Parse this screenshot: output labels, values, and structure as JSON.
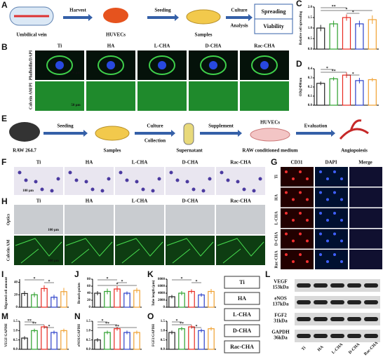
{
  "panel_labels": [
    "A",
    "B",
    "C",
    "D",
    "E",
    "F",
    "G",
    "H",
    "I",
    "J",
    "K",
    "L",
    "M",
    "N",
    "O"
  ],
  "legend": {
    "names": [
      "Ti",
      "HA",
      "L-CHA",
      "D-CHA",
      "Rac-CHA"
    ],
    "colors": [
      "#222222",
      "#2ca02c",
      "#e8281e",
      "#2a3fc9",
      "#f0a030"
    ]
  },
  "workflow_a": {
    "nodes": [
      "Umbilical vein",
      "HUVECs",
      "Samples"
    ],
    "arrows": [
      "Harvest",
      "Seeding",
      "Culture",
      "Analysis"
    ],
    "outputs": [
      "Spreading",
      "Viability"
    ]
  },
  "workflow_e": {
    "nodes": [
      "RAW 264.7",
      "Samples",
      "Supernatant",
      "RAW conditioned medium",
      "Angiopoiesis"
    ],
    "node_top": "HUVECs",
    "arrows": [
      "Seeding",
      "Culture",
      "Collection",
      "Supplement",
      "Evaluation"
    ]
  },
  "panel_b": {
    "rows": [
      "Phalloidin/DAPI",
      "Calcein AM/PI"
    ],
    "scales": [
      "20 μm",
      "50 μm"
    ]
  },
  "panel_f": {
    "scale": "100 μm"
  },
  "panel_g": {
    "columns": [
      "CD31",
      "DAPI",
      "Merge"
    ],
    "scale": "50 μm"
  },
  "panel_h": {
    "rows": [
      "Optics",
      "Calcein AM"
    ],
    "scales": [
      "100 μm",
      "100 μm"
    ]
  },
  "panel_l": {
    "bands": [
      {
        "name": "VEGF",
        "size": "153kDa"
      },
      {
        "name": "eNOS",
        "size": "137kDa"
      },
      {
        "name": "FGF2",
        "size": "31kDa"
      },
      {
        "name": "GAPDH",
        "size": "36kDa"
      }
    ]
  },
  "chart_data": [
    {
      "type": "bar",
      "ylabel": "Relative cell spreading",
      "ylim": [
        0,
        2
      ],
      "yticks": [
        {
          "value": 0,
          "label": "0.0"
        },
        {
          "value": 0.5,
          "label": "0.5"
        },
        {
          "value": 1,
          "label": "1.0"
        },
        {
          "value": 1.5,
          "label": "1.5"
        },
        {
          "value": 2,
          "label": "2.0"
        }
      ],
      "values": [
        1.0,
        1.2,
        1.5,
        1.2,
        1.4
      ],
      "errors": [
        0.15,
        0.15,
        0.15,
        0.15,
        0.2
      ],
      "annotations": [
        {
          "text": "**",
          "between": [
            "Ti",
            "L-CHA"
          ]
        },
        {
          "text": "*",
          "between": [
            "Ti",
            "Rac-CHA"
          ]
        },
        {
          "text": "*",
          "between": [
            "L-CHA",
            "D-CHA"
          ]
        }
      ]
    },
    {
      "type": "bar",
      "ylabel": "OD@490nm",
      "ylim": [
        0,
        0.4
      ],
      "yticks": [
        {
          "value": 0,
          "label": "0.0"
        },
        0.1,
        0.2,
        0.3,
        0.4
      ],
      "values": [
        0.24,
        0.29,
        0.33,
        0.27,
        0.28
      ],
      "errors": [
        0.02,
        0.02,
        0.03,
        0.03,
        0.02
      ],
      "annotations": [
        {
          "text": "*",
          "between": [
            "Ti",
            "HA"
          ]
        },
        {
          "text": "**",
          "between": [
            "Ti",
            "L-CHA"
          ]
        },
        {
          "text": "*",
          "between": [
            "L-CHA",
            "D-CHA"
          ]
        }
      ]
    },
    {
      "type": "bar",
      "ylabel": "Migrated cell amount",
      "ylim": [
        0,
        45
      ],
      "yticks": [
        0,
        20,
        40
      ],
      "values": [
        22,
        20,
        30,
        16,
        25
      ],
      "errors": [
        4,
        4,
        5,
        4,
        6
      ],
      "annotations": [
        {
          "text": "*",
          "between": [
            "Ti",
            "L-CHA"
          ]
        },
        {
          "text": "*",
          "between": [
            "L-CHA",
            "D-CHA"
          ]
        }
      ]
    },
    {
      "type": "bar",
      "ylabel": "Branch points",
      "ylim": [
        0,
        80
      ],
      "yticks": [
        0,
        20,
        40,
        60,
        80
      ],
      "values": [
        40,
        45,
        52,
        40,
        48
      ],
      "errors": [
        6,
        8,
        8,
        5,
        7
      ],
      "annotations": [
        {
          "text": "*",
          "between": [
            "Ti",
            "L-CHA"
          ]
        },
        {
          "text": "*",
          "between": [
            "L-CHA",
            "D-CHA"
          ]
        },
        {
          "text": "*",
          "between": [
            "Ti",
            "Rac-CHA"
          ]
        }
      ]
    },
    {
      "type": "bar",
      "ylabel": "Tube length (μm)",
      "ylim": [
        0,
        8000
      ],
      "yticks": [
        0,
        2000,
        4000,
        6000,
        8000
      ],
      "values": [
        3000,
        4000,
        4500,
        3500,
        4500
      ],
      "errors": [
        500,
        600,
        600,
        500,
        700
      ],
      "annotations": [
        {
          "text": "*",
          "between": [
            "Ti",
            "L-CHA"
          ]
        },
        {
          "text": "*",
          "between": [
            "L-CHA",
            "D-CHA"
          ]
        }
      ]
    },
    {
      "type": "bar",
      "ylabel": "VEGF/GAPDH",
      "ylim": [
        0,
        1.5
      ],
      "yticks": [
        {
          "value": 0,
          "label": "0.0"
        },
        {
          "value": 0.5,
          "label": "0.5"
        },
        {
          "value": 1,
          "label": "1.0"
        },
        {
          "value": 1.5,
          "label": "1.5"
        }
      ],
      "values": [
        0.6,
        1.0,
        1.2,
        0.9,
        1.0
      ],
      "errors": [
        0.1,
        0.1,
        0.1,
        0.1,
        0.1
      ],
      "annotations": [
        {
          "text": "**",
          "between": [
            "Ti",
            "HA"
          ]
        },
        {
          "text": "**",
          "between": [
            "Ti",
            "L-CHA"
          ]
        },
        {
          "text": "*",
          "between": [
            "L-CHA",
            "D-CHA"
          ]
        }
      ]
    },
    {
      "type": "bar",
      "ylabel": "eNOS/GAPDH",
      "ylim": [
        0,
        1.5
      ],
      "yticks": [
        {
          "value": 0,
          "label": "0.0"
        },
        {
          "value": 0.5,
          "label": "0.5"
        },
        {
          "value": 1,
          "label": "1.0"
        },
        {
          "value": 1.5,
          "label": "1.5"
        }
      ],
      "values": [
        0.5,
        0.9,
        1.1,
        0.9,
        0.9
      ],
      "errors": [
        0.1,
        0.1,
        0.1,
        0.1,
        0.1
      ],
      "annotations": [
        {
          "text": "*",
          "between": [
            "Ti",
            "HA"
          ]
        },
        {
          "text": "**",
          "between": [
            "Ti",
            "L-CHA"
          ]
        },
        {
          "text": "**",
          "between": [
            "Ti",
            "Rac-CHA"
          ]
        }
      ]
    },
    {
      "type": "bar",
      "ylabel": "FGF2/GAPDH",
      "ylim": [
        0,
        1.5
      ],
      "yticks": [
        {
          "value": 0,
          "label": "0.0"
        },
        {
          "value": 0.5,
          "label": "0.5"
        },
        {
          "value": 1,
          "label": "1.0"
        },
        {
          "value": 1.5,
          "label": "1.5"
        }
      ],
      "values": [
        0.9,
        1.1,
        1.2,
        1.0,
        1.1
      ],
      "errors": [
        0.1,
        0.1,
        0.1,
        0.1,
        0.1
      ],
      "annotations": [
        {
          "text": "*",
          "between": [
            "Ti",
            "HA"
          ]
        },
        {
          "text": "**",
          "between": [
            "Ti",
            "L-CHA"
          ]
        },
        {
          "text": "*",
          "between": [
            "L-CHA",
            "D-CHA"
          ]
        }
      ]
    }
  ]
}
